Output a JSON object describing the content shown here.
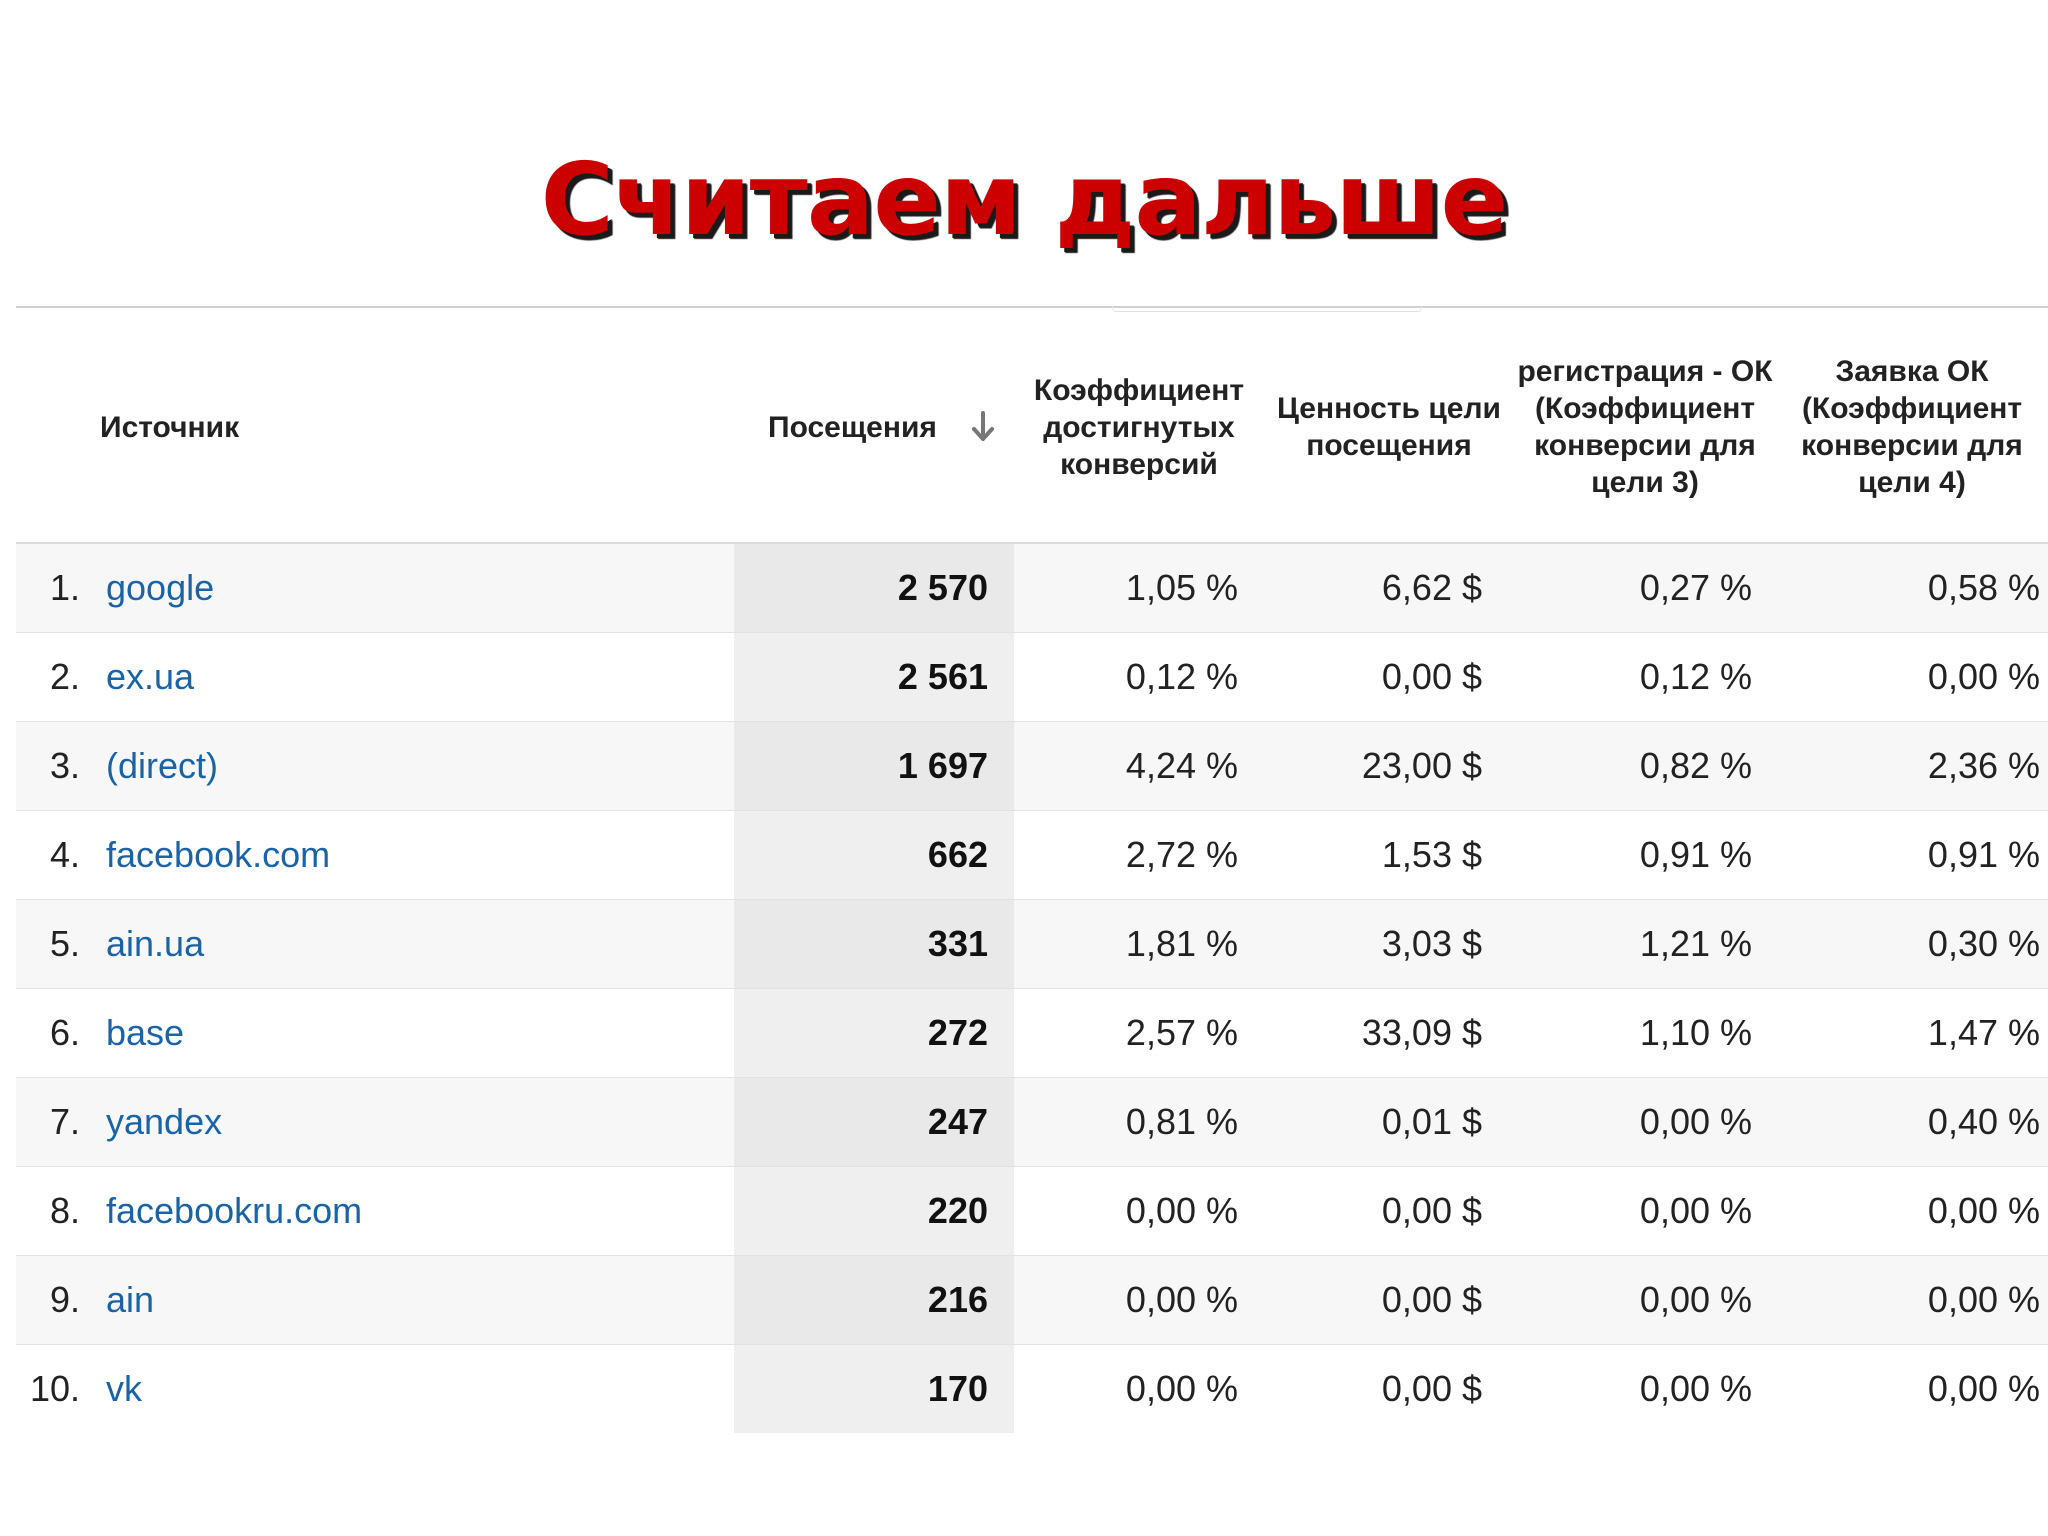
{
  "title": "Считаем дальше",
  "columns": {
    "source": "Источник",
    "visits": "Посещения",
    "conversion": "Коэффициент достигнутых конверсий",
    "goal_value": "Ценность цели посещения",
    "registration": "регистрация - ОК (Коэффициент конверсии для цели 3)",
    "request": "Заявка ОК (Коэффициент конверсии для цели 4)",
    "sort_icon": "arrow-down-icon"
  },
  "rows": [
    {
      "num": "1.",
      "source": "google",
      "visits": "2 570",
      "conversion": "1,05 %",
      "goal_value": "6,62 $",
      "registration": "0,27 %",
      "request": "0,58 %"
    },
    {
      "num": "2.",
      "source": "ex.ua",
      "visits": "2 561",
      "conversion": "0,12 %",
      "goal_value": "0,00 $",
      "registration": "0,12 %",
      "request": "0,00 %"
    },
    {
      "num": "3.",
      "source": "(direct)",
      "visits": "1 697",
      "conversion": "4,24 %",
      "goal_value": "23,00 $",
      "registration": "0,82 %",
      "request": "2,36 %"
    },
    {
      "num": "4.",
      "source": "facebook.com",
      "visits": "662",
      "conversion": "2,72 %",
      "goal_value": "1,53 $",
      "registration": "0,91 %",
      "request": "0,91 %"
    },
    {
      "num": "5.",
      "source": "ain.ua",
      "visits": "331",
      "conversion": "1,81 %",
      "goal_value": "3,03 $",
      "registration": "1,21 %",
      "request": "0,30 %"
    },
    {
      "num": "6.",
      "source": "base",
      "visits": "272",
      "conversion": "2,57 %",
      "goal_value": "33,09 $",
      "registration": "1,10 %",
      "request": "1,47 %"
    },
    {
      "num": "7.",
      "source": "yandex",
      "visits": "247",
      "conversion": "0,81 %",
      "goal_value": "0,01 $",
      "registration": "0,00 %",
      "request": "0,40 %"
    },
    {
      "num": "8.",
      "source": "facebookru.com",
      "visits": "220",
      "conversion": "0,00 %",
      "goal_value": "0,00 $",
      "registration": "0,00 %",
      "request": "0,00 %"
    },
    {
      "num": "9.",
      "source": "ain",
      "visits": "216",
      "conversion": "0,00 %",
      "goal_value": "0,00 $",
      "registration": "0,00 %",
      "request": "0,00 %"
    },
    {
      "num": "10.",
      "source": "vk",
      "visits": "170",
      "conversion": "0,00 %",
      "goal_value": "0,00 $",
      "registration": "0,00 %",
      "request": "0,00 %"
    }
  ]
}
